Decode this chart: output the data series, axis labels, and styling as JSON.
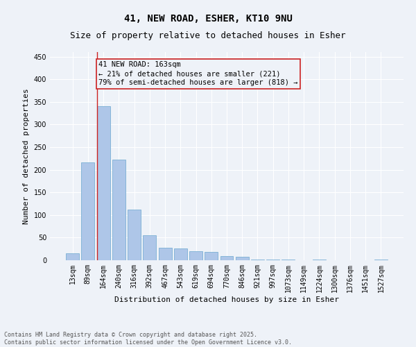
{
  "title": "41, NEW ROAD, ESHER, KT10 9NU",
  "subtitle": "Size of property relative to detached houses in Esher",
  "xlabel": "Distribution of detached houses by size in Esher",
  "ylabel": "Number of detached properties",
  "bar_labels": [
    "13sqm",
    "89sqm",
    "164sqm",
    "240sqm",
    "316sqm",
    "392sqm",
    "467sqm",
    "543sqm",
    "619sqm",
    "694sqm",
    "770sqm",
    "846sqm",
    "921sqm",
    "997sqm",
    "1073sqm",
    "1149sqm",
    "1224sqm",
    "1300sqm",
    "1376sqm",
    "1451sqm",
    "1527sqm"
  ],
  "bar_values": [
    15,
    216,
    340,
    222,
    112,
    55,
    27,
    26,
    20,
    18,
    9,
    7,
    2,
    1,
    1,
    0,
    1,
    0,
    0,
    0,
    2
  ],
  "bar_color": "#aec6e8",
  "bar_edge_color": "#7aafd4",
  "annotation_text_lines": [
    "41 NEW ROAD: 163sqm",
    "← 21% of detached houses are smaller (221)",
    "79% of semi-detached houses are larger (818) →"
  ],
  "vline_color": "#cc2222",
  "annotation_box_edge_color": "#cc2222",
  "ylim": [
    0,
    460
  ],
  "yticks": [
    0,
    50,
    100,
    150,
    200,
    250,
    300,
    350,
    400,
    450
  ],
  "bg_color": "#eef2f8",
  "grid_color": "#ffffff",
  "footer_line1": "Contains HM Land Registry data © Crown copyright and database right 2025.",
  "footer_line2": "Contains public sector information licensed under the Open Government Licence v3.0.",
  "title_fontsize": 10,
  "subtitle_fontsize": 9,
  "axis_label_fontsize": 8,
  "tick_fontsize": 7,
  "annotation_fontsize": 7.5,
  "footer_fontsize": 6
}
